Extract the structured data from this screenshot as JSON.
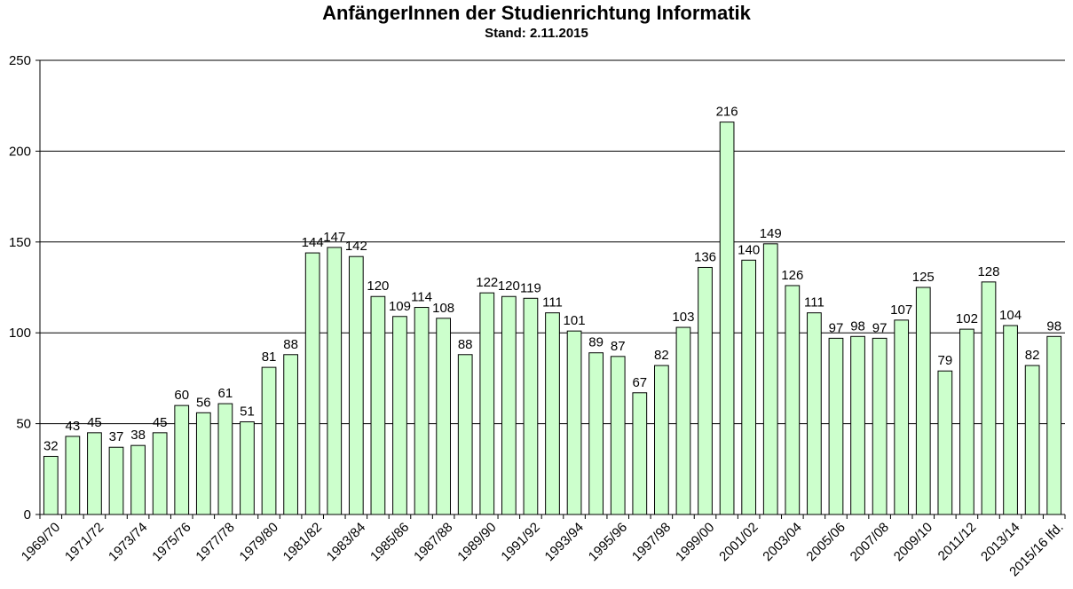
{
  "chart_data": {
    "type": "bar",
    "title": "AnfängerInnen der Studienrichtung Informatik",
    "subtitle": "Stand:  2.11.2015",
    "xlabel": "",
    "ylabel": "",
    "ylim": [
      0,
      250
    ],
    "yticks": [
      0,
      50,
      100,
      150,
      200,
      250
    ],
    "grid": true,
    "legend": "none",
    "bar_color": "#ccffcc",
    "categories": [
      "1969/70",
      "1970/71",
      "1971/72",
      "1972/73",
      "1973/74",
      "1974/75",
      "1975/76",
      "1976/77",
      "1977/78",
      "1978/79",
      "1979/80",
      "1980/81",
      "1981/82",
      "1982/83",
      "1983/84",
      "1984/85",
      "1985/86",
      "1986/87",
      "1987/88",
      "1988/89",
      "1989/90",
      "1990/91",
      "1991/92",
      "1992/93",
      "1993/94",
      "1994/95",
      "1995/96",
      "1996/97",
      "1997/98",
      "1998/99",
      "1999/00",
      "2000/01",
      "2001/02",
      "2002/03",
      "2003/04",
      "2004/05",
      "2005/06",
      "2006/07",
      "2007/08",
      "2008/09",
      "2009/10",
      "2010/11",
      "2011/12",
      "2012/13",
      "2013/14",
      "2014/15",
      "2015/16 lfd."
    ],
    "visible_tick_labels": [
      "1969/70",
      "1971/72",
      "1973/74",
      "1975/76",
      "1977/78",
      "1979/80",
      "1981/82",
      "1983/84",
      "1985/86",
      "1987/88",
      "1989/90",
      "1991/92",
      "1993/94",
      "1995/96",
      "1997/98",
      "1999/00",
      "2001/02",
      "2003/04",
      "2005/06",
      "2007/08",
      "2009/10",
      "2011/12",
      "2013/14",
      "2015/16 lfd."
    ],
    "values": [
      32,
      43,
      45,
      37,
      38,
      45,
      60,
      56,
      61,
      51,
      81,
      88,
      144,
      147,
      142,
      120,
      109,
      114,
      108,
      88,
      122,
      120,
      119,
      111,
      101,
      89,
      87,
      67,
      82,
      103,
      136,
      216,
      140,
      149,
      126,
      111,
      97,
      98,
      97,
      107,
      125,
      79,
      102,
      128,
      104,
      82,
      98
    ]
  }
}
